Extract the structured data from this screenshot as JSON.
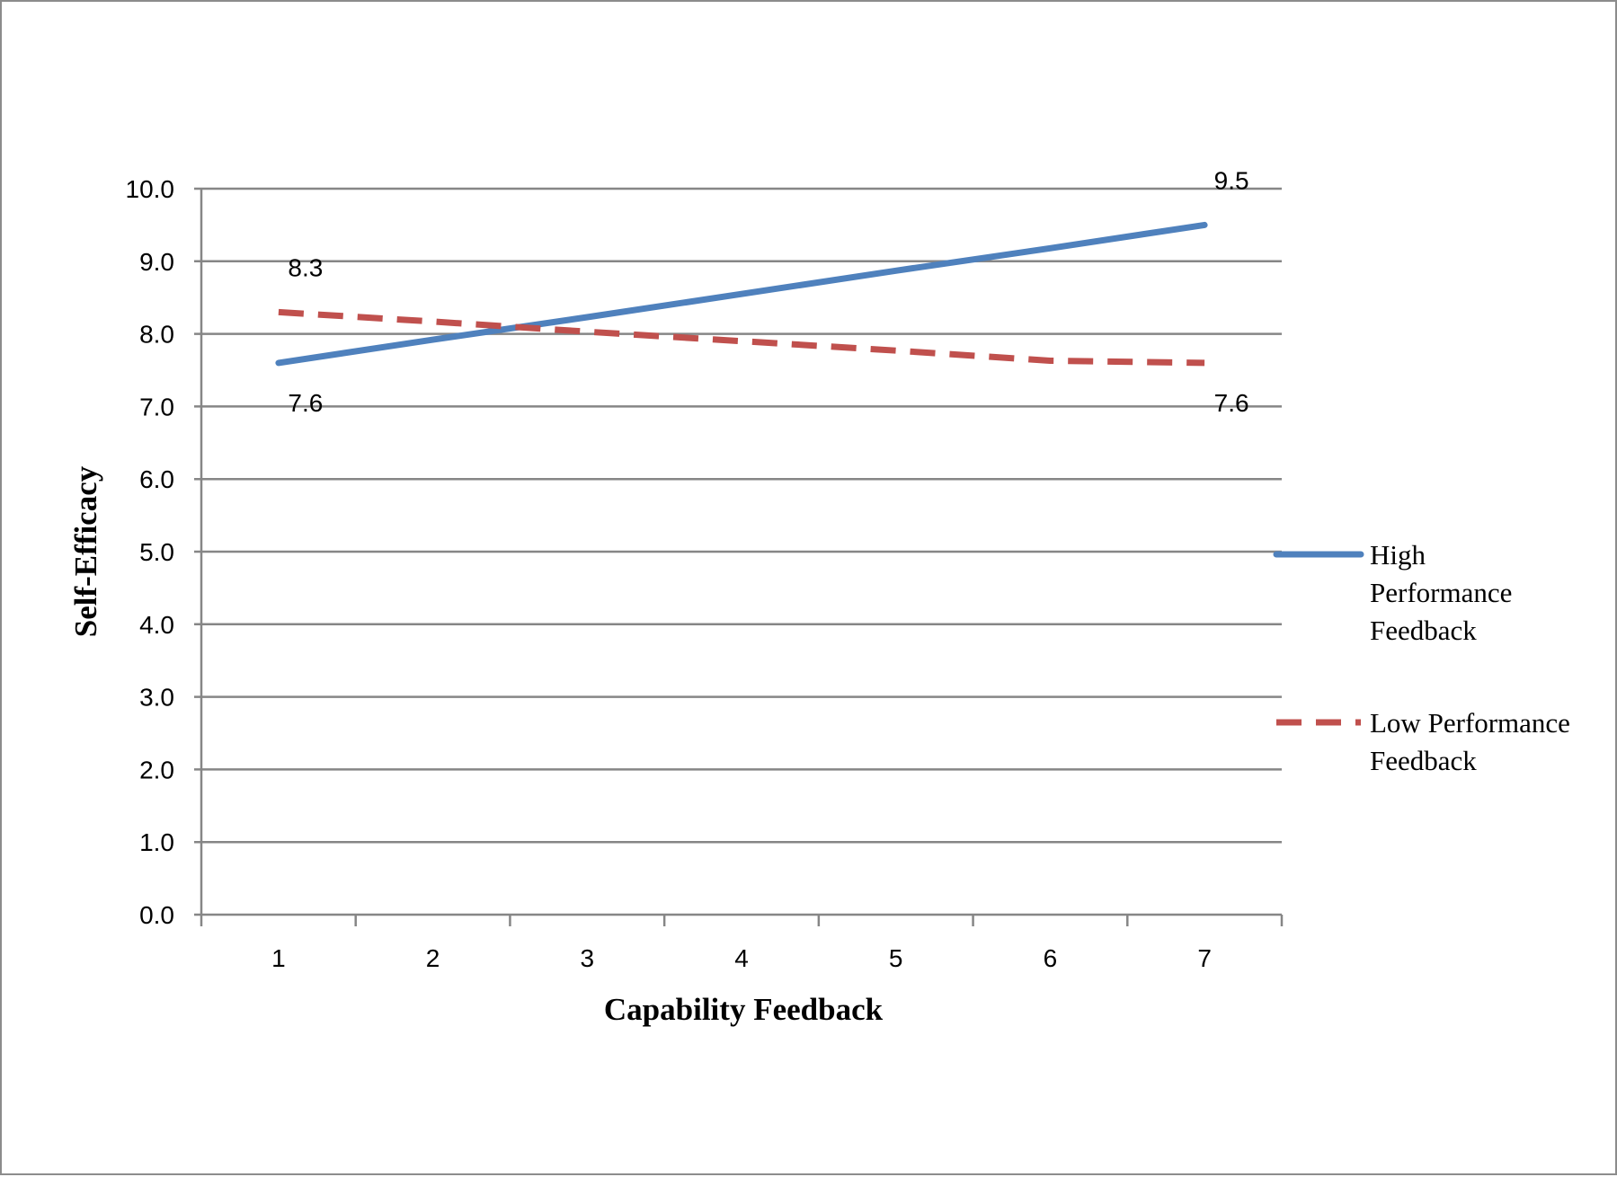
{
  "chart_data": {
    "type": "line",
    "x": [
      1,
      2,
      3,
      4,
      5,
      6,
      7
    ],
    "categories": [
      "1",
      "2",
      "3",
      "4",
      "5",
      "6",
      "7"
    ],
    "series": [
      {
        "name": "High Performance Feedback",
        "name_lines": [
          "High",
          "Performance",
          "Feedback"
        ],
        "values": [
          7.6,
          7.92,
          8.23,
          8.55,
          8.87,
          9.18,
          9.5
        ],
        "color": "#4f81bd",
        "dash": "solid",
        "labels": [
          {
            "x_index": 0,
            "text": "7.6",
            "position": "below"
          },
          {
            "x_index": 6,
            "text": "9.5",
            "position": "above"
          }
        ]
      },
      {
        "name": "Low Performance Feedback",
        "name_lines": [
          "Low Performance",
          "Feedback"
        ],
        "values": [
          8.3,
          8.17,
          8.03,
          7.9,
          7.77,
          7.63,
          7.6
        ],
        "color": "#c0504d",
        "dash": "dashed",
        "labels": [
          {
            "x_index": 0,
            "text": "8.3",
            "position": "above"
          },
          {
            "x_index": 6,
            "text": "7.6",
            "position": "below"
          }
        ]
      }
    ],
    "y_ticks": [
      "0.0",
      "1.0",
      "2.0",
      "3.0",
      "4.0",
      "5.0",
      "6.0",
      "7.0",
      "8.0",
      "9.0",
      "10.0"
    ],
    "ylim": [
      0,
      10
    ],
    "xlabel": "Capability Feedback",
    "ylabel": "Self-Efficacy",
    "title": "",
    "grid": "horizontal",
    "legend_position": "right",
    "gridline_color": "#868686"
  }
}
